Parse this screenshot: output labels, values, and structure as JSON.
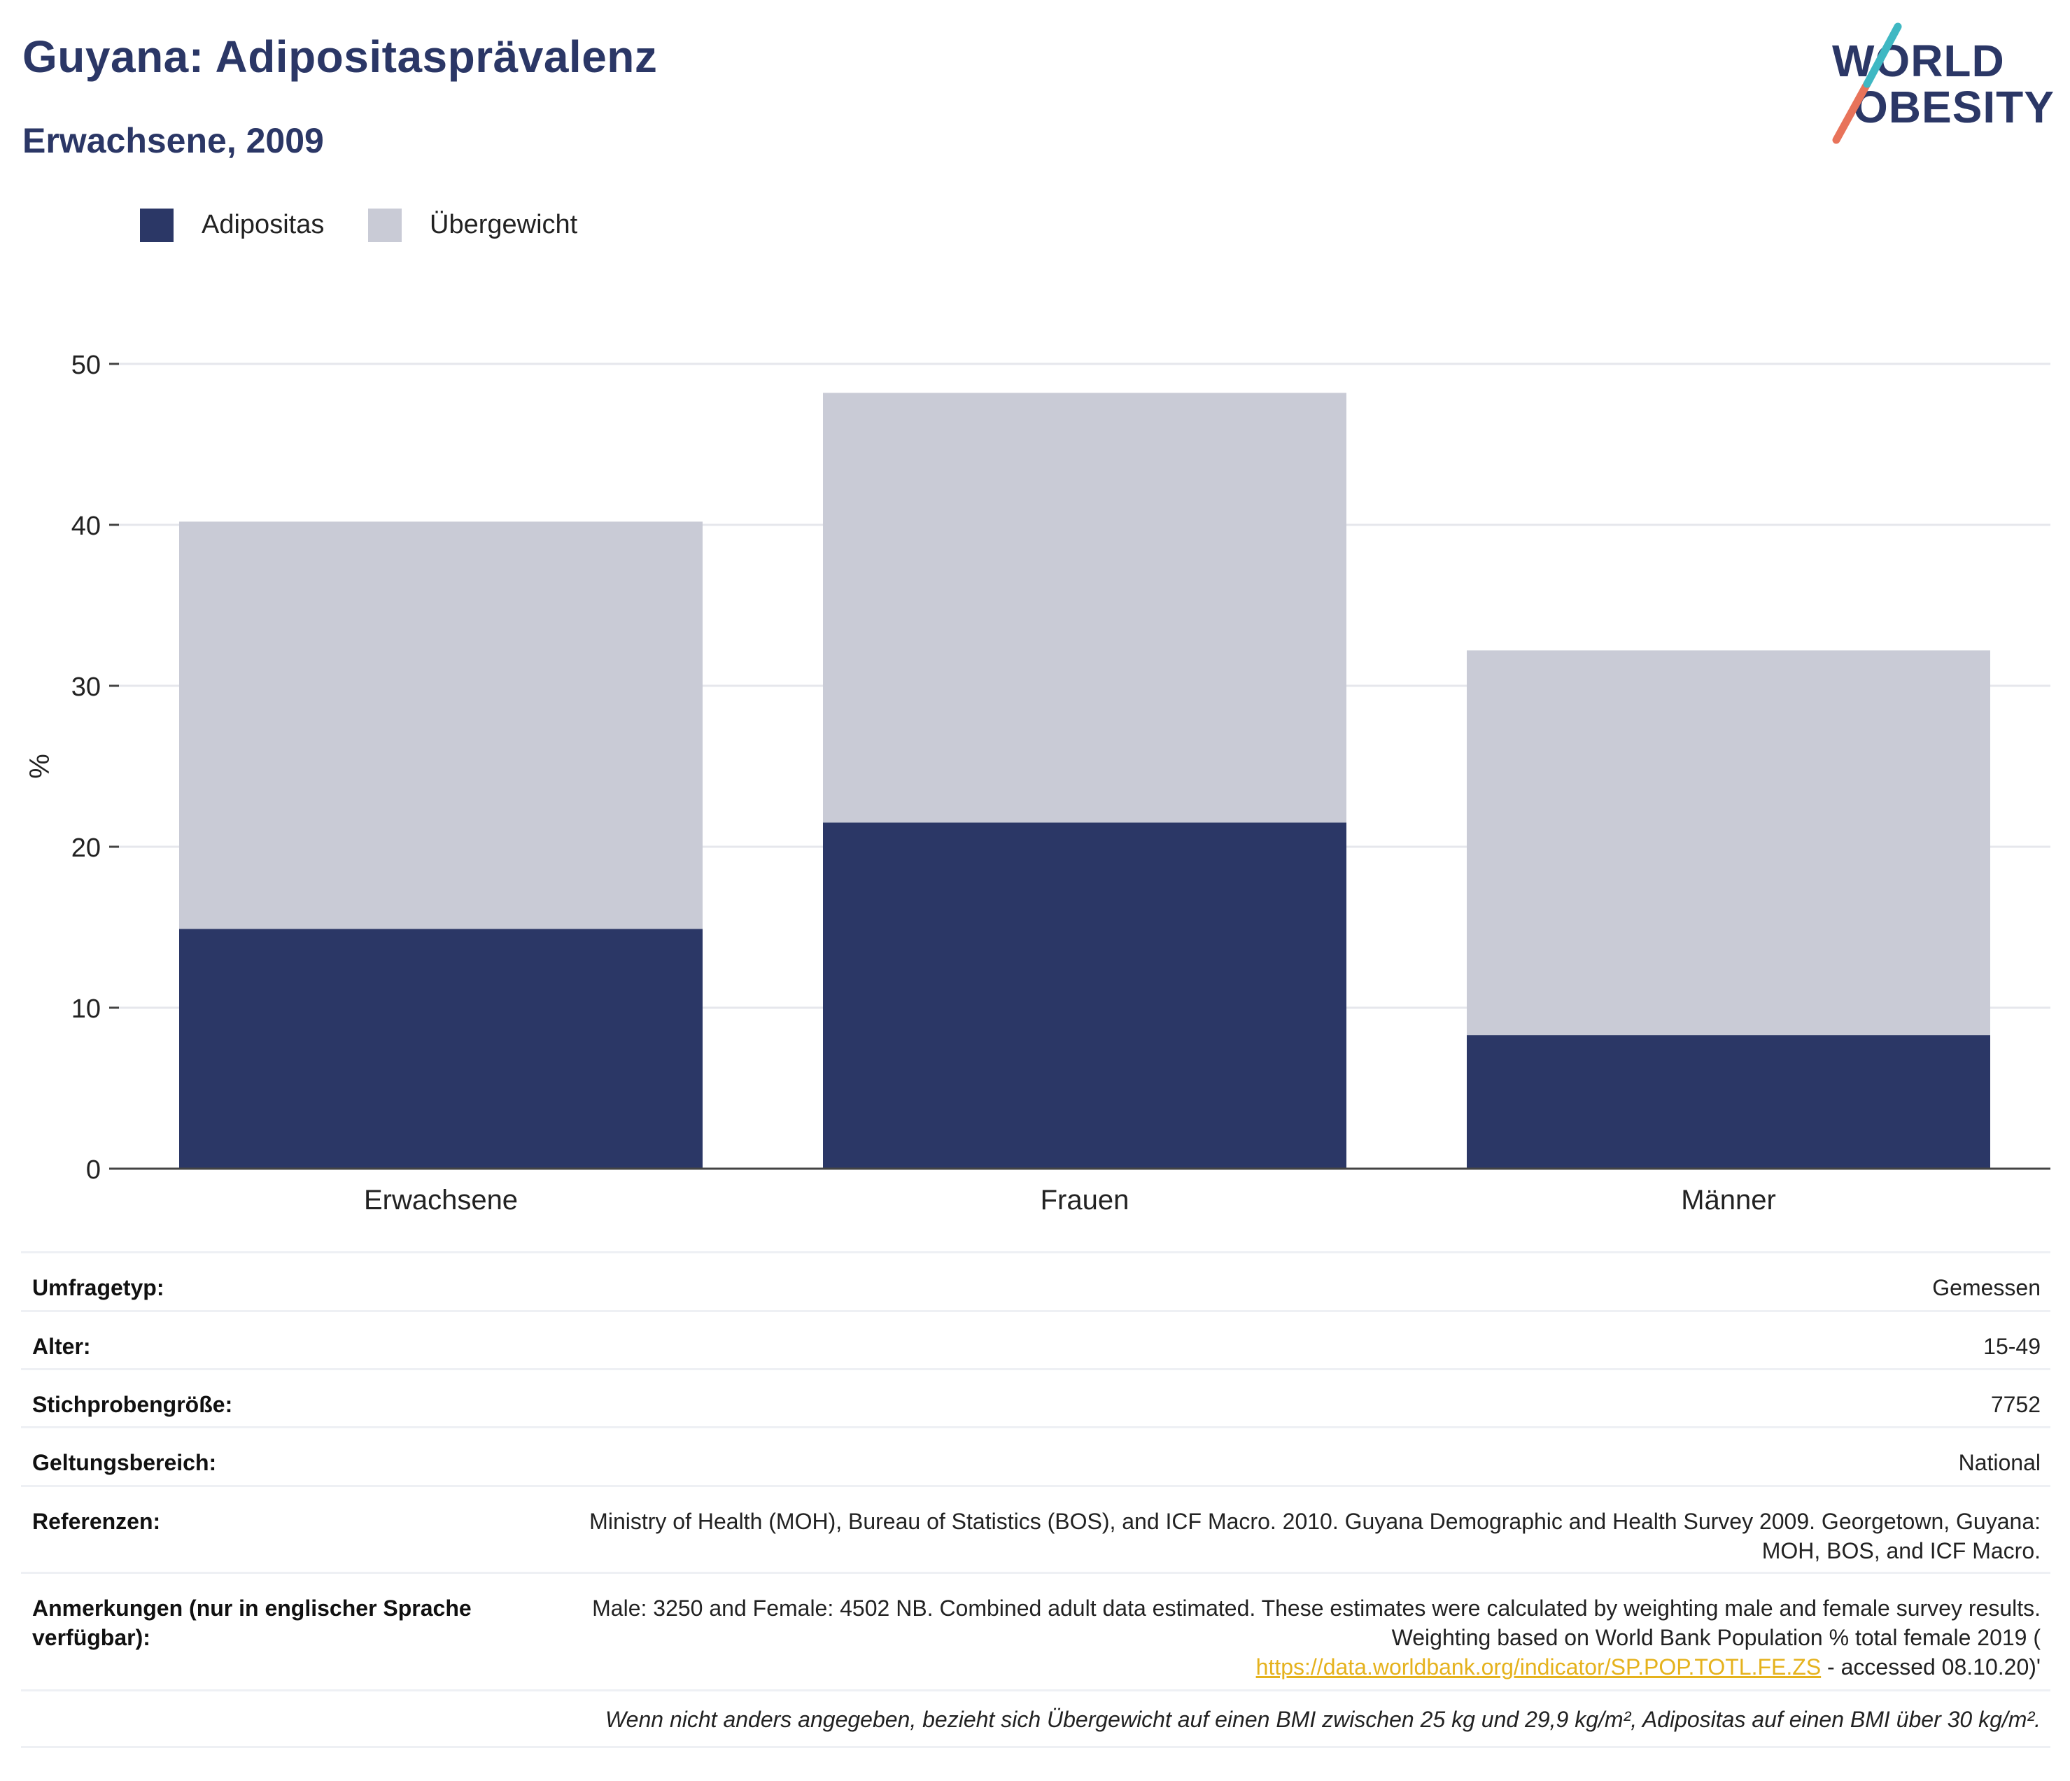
{
  "header": {
    "title": "Guyana: Adipositasprävalenz",
    "subtitle": "Erwachsene, 2009"
  },
  "logo": {
    "line1": "WORLD",
    "line2": "OBESITY"
  },
  "legend": [
    {
      "label": "Adipositas",
      "color": "#2b3766"
    },
    {
      "label": "Übergewicht",
      "color": "#c9cbd6"
    }
  ],
  "chart_data": {
    "type": "bar",
    "stacked": true,
    "categories": [
      "Erwachsene",
      "Frauen",
      "Männer"
    ],
    "series": [
      {
        "name": "Adipositas",
        "values": [
          14.9,
          21.5,
          8.3
        ],
        "color": "#2b3766"
      },
      {
        "name": "Übergewicht",
        "values": [
          25.3,
          26.7,
          23.9
        ],
        "color": "#c9cbd6"
      }
    ],
    "ylabel": "%",
    "ylim": [
      0,
      50
    ],
    "yticks": [
      0,
      10,
      20,
      30,
      40,
      50
    ],
    "grid": true,
    "legend_position": "top-left"
  },
  "meta": {
    "rows": [
      {
        "label": "Umfragetyp:",
        "value": "Gemessen"
      },
      {
        "label": "Alter:",
        "value": "15-49"
      },
      {
        "label": "Stichprobengröße:",
        "value": "7752"
      },
      {
        "label": "Geltungsbereich:",
        "value": "National"
      },
      {
        "label": "Referenzen:",
        "value": "Ministry of Health (MOH), Bureau of Statistics (BOS), and ICF Macro. 2010. Guyana Demographic and Health Survey 2009. Georgetown, Guyana: MOH, BOS, and ICF Macro."
      }
    ],
    "notes": {
      "label": "Anmerkungen (nur in englischer Sprache verfügbar):",
      "text_before": "Male: 3250 and Female: 4502 NB. Combined adult data estimated. These estimates were calculated by weighting male and female survey results. Weighting based on World Bank Population % total female 2019 (",
      "link": "https://data.worldbank.org/indicator/SP.POP.TOTL.FE.ZS",
      "text_after": " - accessed 08.10.20)'"
    },
    "footnote": "Wenn nicht anders angegeben, bezieht sich Übergewicht auf einen BMI zwischen 25 kg und 29,9 kg/m², Adipositas auf einen BMI über 30 kg/m²."
  }
}
